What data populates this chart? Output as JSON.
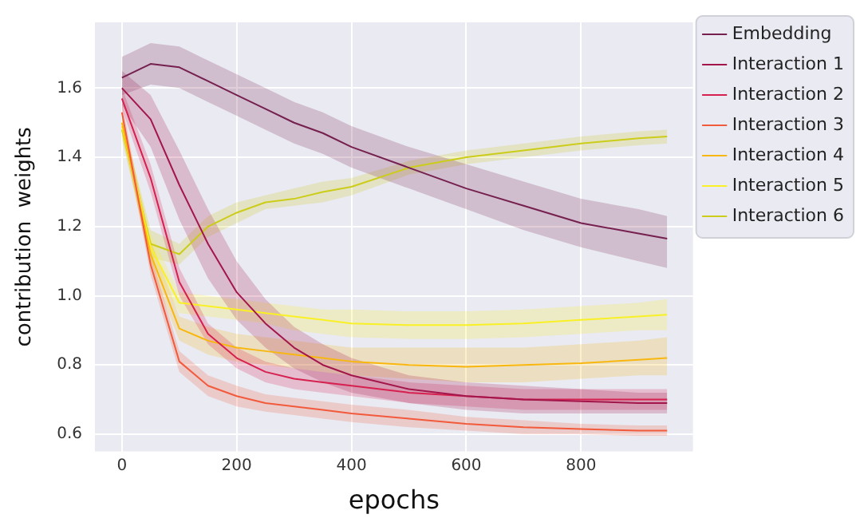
{
  "chart_data": {
    "type": "line",
    "xlabel": "epochs",
    "ylabel": "contribution  weights",
    "x": [
      0,
      50,
      100,
      150,
      200,
      250,
      300,
      350,
      400,
      500,
      600,
      700,
      800,
      900,
      950
    ],
    "xlim": [
      -47,
      995
    ],
    "xticks": [
      0,
      200,
      400,
      600,
      800
    ],
    "ylim": [
      0.55,
      1.79
    ],
    "yticks": [
      0.6,
      0.8,
      {
        "value": 1,
        "label": "1.0"
      },
      1.2,
      1.4,
      1.6
    ],
    "grid": true,
    "legend": "right",
    "marker": "none",
    "line_style": "solid",
    "series": [
      {
        "name": "Embedding",
        "color": "#75204f",
        "values": [
          1.63,
          1.67,
          1.66,
          1.62,
          1.58,
          1.54,
          1.5,
          1.47,
          1.43,
          1.37,
          1.31,
          1.26,
          1.21,
          1.18,
          1.165
        ],
        "lower": [
          1.58,
          1.61,
          1.6,
          1.56,
          1.52,
          1.48,
          1.44,
          1.41,
          1.37,
          1.31,
          1.25,
          1.19,
          1.14,
          1.1,
          1.08
        ],
        "upper": [
          1.69,
          1.73,
          1.72,
          1.68,
          1.64,
          1.6,
          1.56,
          1.53,
          1.49,
          1.43,
          1.38,
          1.33,
          1.28,
          1.25,
          1.23
        ]
      },
      {
        "name": "Interaction 1",
        "color": "#a3164b",
        "values": [
          1.6,
          1.51,
          1.32,
          1.15,
          1.01,
          0.92,
          0.85,
          0.8,
          0.77,
          0.73,
          0.71,
          0.7,
          0.695,
          0.69,
          0.69
        ],
        "lower": [
          1.55,
          1.43,
          1.22,
          1.05,
          0.93,
          0.85,
          0.79,
          0.75,
          0.72,
          0.69,
          0.67,
          0.66,
          0.66,
          0.66,
          0.66
        ],
        "upper": [
          1.65,
          1.58,
          1.42,
          1.25,
          1.1,
          0.99,
          0.91,
          0.86,
          0.82,
          0.77,
          0.75,
          0.74,
          0.73,
          0.72,
          0.72
        ]
      },
      {
        "name": "Interaction 2",
        "color": "#d6204f",
        "values": [
          1.57,
          1.34,
          1.04,
          0.89,
          0.82,
          0.78,
          0.76,
          0.75,
          0.74,
          0.72,
          0.71,
          0.7,
          0.7,
          0.7,
          0.7
        ],
        "lower": [
          1.54,
          1.3,
          1.0,
          0.86,
          0.79,
          0.75,
          0.73,
          0.72,
          0.71,
          0.69,
          0.68,
          0.67,
          0.67,
          0.67,
          0.67
        ],
        "upper": [
          1.6,
          1.38,
          1.08,
          0.92,
          0.85,
          0.81,
          0.79,
          0.78,
          0.77,
          0.75,
          0.74,
          0.73,
          0.73,
          0.73,
          0.73
        ]
      },
      {
        "name": "Interaction 3",
        "color": "#f25a3c",
        "values": [
          1.53,
          1.09,
          0.81,
          0.74,
          0.71,
          0.69,
          0.68,
          0.67,
          0.66,
          0.645,
          0.63,
          0.62,
          0.615,
          0.61,
          0.61
        ],
        "lower": [
          1.5,
          1.06,
          0.78,
          0.71,
          0.68,
          0.665,
          0.655,
          0.645,
          0.635,
          0.62,
          0.61,
          0.6,
          0.6,
          0.595,
          0.595
        ],
        "upper": [
          1.56,
          1.12,
          0.84,
          0.77,
          0.74,
          0.715,
          0.705,
          0.695,
          0.685,
          0.67,
          0.65,
          0.64,
          0.63,
          0.625,
          0.625
        ]
      },
      {
        "name": "Interaction 4",
        "color": "#f8b70f",
        "values": [
          1.5,
          1.12,
          0.905,
          0.87,
          0.85,
          0.84,
          0.83,
          0.82,
          0.81,
          0.8,
          0.795,
          0.8,
          0.805,
          0.815,
          0.82
        ],
        "lower": [
          1.47,
          1.08,
          0.87,
          0.83,
          0.81,
          0.8,
          0.79,
          0.78,
          0.77,
          0.76,
          0.75,
          0.75,
          0.76,
          0.77,
          0.77
        ],
        "upper": [
          1.53,
          1.16,
          0.94,
          0.91,
          0.89,
          0.88,
          0.87,
          0.86,
          0.85,
          0.85,
          0.85,
          0.85,
          0.86,
          0.87,
          0.88
        ]
      },
      {
        "name": "Interaction 5",
        "color": "#f9f025",
        "values": [
          1.49,
          1.14,
          0.98,
          0.97,
          0.96,
          0.95,
          0.94,
          0.93,
          0.92,
          0.915,
          0.915,
          0.92,
          0.93,
          0.94,
          0.945
        ],
        "lower": [
          1.46,
          1.1,
          0.95,
          0.94,
          0.93,
          0.92,
          0.9,
          0.89,
          0.88,
          0.875,
          0.875,
          0.88,
          0.89,
          0.9,
          0.9
        ],
        "upper": [
          1.52,
          1.18,
          1.01,
          1.0,
          0.99,
          0.98,
          0.97,
          0.96,
          0.96,
          0.955,
          0.955,
          0.96,
          0.97,
          0.98,
          0.99
        ]
      },
      {
        "name": "Interaction 6",
        "color": "#cccc1a",
        "values": [
          1.48,
          1.15,
          1.12,
          1.2,
          1.24,
          1.27,
          1.28,
          1.3,
          1.315,
          1.37,
          1.4,
          1.42,
          1.44,
          1.455,
          1.46
        ],
        "lower": [
          1.45,
          1.11,
          1.09,
          1.17,
          1.21,
          1.25,
          1.26,
          1.27,
          1.29,
          1.35,
          1.38,
          1.4,
          1.42,
          1.435,
          1.44
        ],
        "upper": [
          1.51,
          1.19,
          1.15,
          1.23,
          1.27,
          1.29,
          1.31,
          1.33,
          1.34,
          1.39,
          1.42,
          1.44,
          1.46,
          1.475,
          1.48
        ]
      }
    ]
  }
}
